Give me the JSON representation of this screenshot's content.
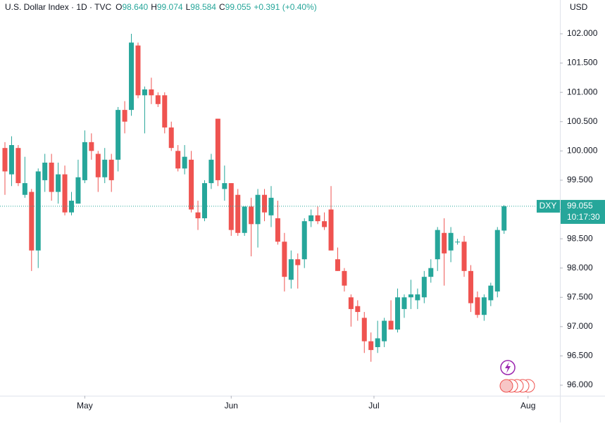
{
  "chart_data": {
    "type": "candlestick",
    "title": "U.S. Dollar Index · 1D · TVC",
    "ohlc_header": [
      {
        "key": "O",
        "value": "98.640"
      },
      {
        "key": "H",
        "value": "99.074"
      },
      {
        "key": "L",
        "value": "98.584"
      },
      {
        "key": "C",
        "value": "99.055"
      }
    ],
    "change": "+0.391 (+0.40%)",
    "currency": "USD",
    "symbol": "DXY",
    "countdown": "10:17:30",
    "up_color": "#26a69a",
    "down_color": "#ef5350",
    "x": [
      0,
      1,
      2,
      3,
      4,
      5,
      6,
      7,
      8,
      9,
      10,
      11,
      12,
      13,
      14,
      15,
      16,
      17,
      18,
      19,
      20,
      21,
      22,
      23,
      24,
      25,
      26,
      27,
      28,
      29,
      30,
      31,
      32,
      33,
      34,
      35,
      36,
      37,
      38,
      39,
      40,
      41,
      42,
      43,
      44,
      45,
      46,
      47,
      48,
      49,
      50,
      51,
      52,
      53,
      54,
      55,
      56,
      57,
      58,
      59,
      60,
      61,
      62,
      63,
      64,
      65,
      66,
      67,
      68,
      69,
      70,
      71,
      72,
      73,
      74,
      75
    ],
    "open": [
      100.05,
      99.6,
      100.05,
      99.25,
      99.3,
      98.3,
      99.5,
      99.8,
      99.3,
      99.6,
      98.95,
      99.1,
      99.5,
      100.15,
      99.95,
      99.55,
      99.85,
      99.85,
      100.7,
      100.7,
      101.8,
      100.95,
      101.05,
      100.95,
      100.95,
      100.4,
      100.0,
      99.7,
      99.85,
      98.95,
      98.85,
      99.45,
      100.55,
      99.35,
      99.45,
      99.25,
      98.6,
      99.05,
      98.75,
      99.25,
      98.9,
      98.85,
      98.45,
      97.8,
      98.15,
      98.15,
      98.8,
      98.9,
      98.8,
      99.0,
      98.15,
      97.95,
      97.5,
      97.35,
      97.15,
      96.75,
      96.65,
      96.75,
      97.1,
      96.95,
      97.3,
      97.5,
      97.45,
      97.5,
      97.85,
      98.15,
      98.6,
      98.3,
      98.45,
      98.45,
      97.95,
      97.5,
      97.2,
      97.45,
      97.6,
      98.64
    ],
    "high": [
      100.15,
      100.25,
      100.1,
      99.9,
      99.35,
      99.7,
      99.95,
      99.95,
      99.8,
      99.75,
      99.3,
      99.85,
      100.35,
      100.3,
      100.0,
      100.05,
      99.95,
      100.75,
      100.85,
      102.0,
      101.85,
      101.1,
      101.25,
      101.0,
      101.0,
      100.5,
      100.1,
      100.1,
      100.0,
      99.15,
      99.5,
      99.95,
      100.55,
      99.75,
      99.45,
      99.35,
      99.05,
      99.2,
      99.35,
      99.35,
      99.4,
      99.15,
      98.6,
      98.3,
      98.25,
      98.85,
      99.0,
      99.05,
      98.95,
      99.4,
      98.35,
      98.0,
      97.55,
      97.45,
      97.25,
      96.9,
      97.1,
      97.15,
      97.45,
      97.65,
      97.55,
      97.8,
      97.65,
      97.95,
      98.15,
      98.7,
      98.85,
      98.7,
      98.5,
      98.55,
      98.05,
      97.6,
      97.55,
      97.75,
      98.7,
      99.074
    ],
    "low": [
      99.25,
      99.4,
      99.4,
      99.2,
      97.95,
      98.0,
      99.3,
      99.15,
      99.1,
      98.9,
      98.9,
      99.1,
      99.45,
      99.85,
      99.3,
      99.45,
      99.3,
      99.65,
      100.3,
      100.6,
      100.9,
      100.3,
      100.8,
      100.75,
      100.3,
      100.0,
      99.65,
      99.6,
      98.95,
      98.65,
      98.8,
      99.35,
      99.4,
      99.15,
      98.55,
      98.55,
      98.55,
      98.2,
      98.35,
      98.8,
      98.7,
      98.4,
      97.6,
      97.65,
      97.65,
      98.0,
      98.7,
      98.75,
      98.65,
      98.35,
      97.95,
      97.6,
      97.0,
      97.1,
      96.55,
      96.4,
      96.55,
      96.65,
      96.95,
      96.9,
      97.15,
      97.3,
      97.3,
      97.4,
      97.75,
      97.95,
      97.7,
      98.1,
      98.4,
      97.85,
      97.25,
      97.15,
      97.1,
      97.35,
      97.5,
      98.584
    ],
    "close": [
      99.65,
      100.1,
      99.45,
      99.45,
      98.3,
      99.65,
      99.8,
      99.3,
      99.6,
      98.95,
      99.15,
      99.55,
      100.15,
      100.0,
      99.55,
      99.85,
      99.5,
      100.7,
      100.5,
      101.85,
      100.95,
      101.05,
      100.95,
      100.8,
      100.4,
      100.05,
      99.7,
      99.9,
      99.0,
      98.85,
      99.45,
      99.85,
      99.5,
      99.45,
      98.65,
      98.6,
      99.05,
      98.75,
      99.25,
      98.95,
      99.2,
      98.45,
      97.85,
      98.15,
      98.05,
      98.8,
      98.9,
      98.8,
      98.7,
      98.3,
      97.95,
      97.7,
      97.3,
      97.25,
      96.75,
      96.6,
      96.8,
      97.1,
      96.95,
      97.5,
      97.5,
      97.55,
      97.55,
      97.85,
      98.0,
      98.65,
      98.25,
      98.6,
      98.45,
      97.95,
      97.4,
      97.2,
      97.5,
      97.7,
      98.65,
      99.055
    ],
    "xlim": [
      -0.74,
      83.39
    ],
    "xticks": [
      {
        "value": 12,
        "label": "May"
      },
      {
        "value": 34,
        "label": "Jun"
      },
      {
        "value": 55.45,
        "label": "Jul"
      },
      {
        "value": 78.6,
        "label": "Aug"
      }
    ],
    "ylim": [
      95.82,
      102.577
    ],
    "yticks": [
      {
        "value": 96,
        "label": "96.000"
      },
      {
        "value": 96.5,
        "label": "96.500"
      },
      {
        "value": 97,
        "label": "97.000"
      },
      {
        "value": 97.5,
        "label": "97.500"
      },
      {
        "value": 98,
        "label": "98.000"
      },
      {
        "value": 98.5,
        "label": "98.500"
      },
      {
        "value": 99,
        "label": "99.000"
      },
      {
        "value": 99.5,
        "label": "99.500"
      },
      {
        "value": 100,
        "label": "100.000"
      },
      {
        "value": 100.5,
        "label": "100.500"
      },
      {
        "value": 101,
        "label": "101.000"
      },
      {
        "value": 101.5,
        "label": "101.500"
      },
      {
        "value": 102,
        "label": "102.000"
      }
    ],
    "grid": false
  }
}
